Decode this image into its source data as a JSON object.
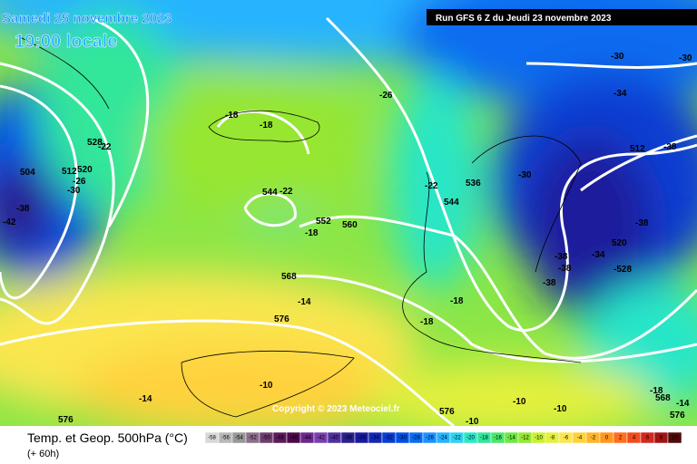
{
  "header": {
    "date": "Samedi 25 novembre 2023",
    "time": "19:00 locale",
    "run": "Run GFS 6 Z du Jeudi 23 novembre 2023"
  },
  "copyright": "Copyright © 2023 Meteociel.fr",
  "footer": {
    "title": "Temp. et Geop. 500hPa (°C)",
    "lead": "(+ 60h)"
  },
  "map_labels": [
    "-18",
    "-18",
    "-26",
    "-30",
    "-30",
    "-34",
    "512",
    "-38",
    "528",
    "-22",
    "504",
    "512",
    "520",
    "-26",
    "-30",
    "-38",
    "-42",
    "544",
    "-22",
    "-30",
    "536",
    "-22",
    "544",
    "552",
    "560",
    "-18",
    "-38",
    "520",
    "-34",
    "-528",
    "-38",
    "-38",
    "-38",
    "568",
    "-14",
    "-18",
    "576",
    "-18",
    "-10",
    "-14",
    "-10",
    "-10",
    "576",
    "-10",
    "576",
    "-18",
    "568",
    "-14",
    "576"
  ],
  "legend": [
    {
      "label": "-58",
      "color": "#d8d8d8"
    },
    {
      "label": "-56",
      "color": "#b8b8b8"
    },
    {
      "label": "-54",
      "color": "#989898"
    },
    {
      "label": "-52",
      "color": "#8c6f8c"
    },
    {
      "label": "-50",
      "color": "#6e3d6e"
    },
    {
      "label": "-48",
      "color": "#5a1b5a"
    },
    {
      "label": "-46",
      "color": "#4b0a4b"
    },
    {
      "label": "-44",
      "color": "#6a2a8a"
    },
    {
      "label": "-42",
      "color": "#7b3fb0"
    },
    {
      "label": "-40",
      "color": "#5030a0"
    },
    {
      "label": "-38",
      "color": "#2b1e8c"
    },
    {
      "label": "-36",
      "color": "#1a1a9c"
    },
    {
      "label": "-34",
      "color": "#1428b4"
    },
    {
      "label": "-32",
      "color": "#0a3cd2"
    },
    {
      "label": "-30",
      "color": "#0050e6"
    },
    {
      "label": "-28",
      "color": "#0a6cf0"
    },
    {
      "label": "-26",
      "color": "#1e90ff"
    },
    {
      "label": "-24",
      "color": "#28b4ff"
    },
    {
      "label": "-22",
      "color": "#2cd2f0"
    },
    {
      "label": "-20",
      "color": "#28e6c8"
    },
    {
      "label": "-18",
      "color": "#30e69a"
    },
    {
      "label": "-16",
      "color": "#4ae66a"
    },
    {
      "label": "-14",
      "color": "#6ee646"
    },
    {
      "label": "-12",
      "color": "#96e632"
    },
    {
      "label": "-10",
      "color": "#c8f032"
    },
    {
      "label": "-8",
      "color": "#e6f03c"
    },
    {
      "label": "-6",
      "color": "#fae650"
    },
    {
      "label": "-4",
      "color": "#ffd23c"
    },
    {
      "label": "-2",
      "color": "#ffb42a"
    },
    {
      "label": "0",
      "color": "#ff961e"
    },
    {
      "label": "2",
      "color": "#ff6e1e"
    },
    {
      "label": "4",
      "color": "#f04b1e"
    },
    {
      "label": "6",
      "color": "#d2281e"
    },
    {
      "label": "8",
      "color": "#a01414"
    },
    {
      "label": "10",
      "color": "#500a0a"
    }
  ]
}
